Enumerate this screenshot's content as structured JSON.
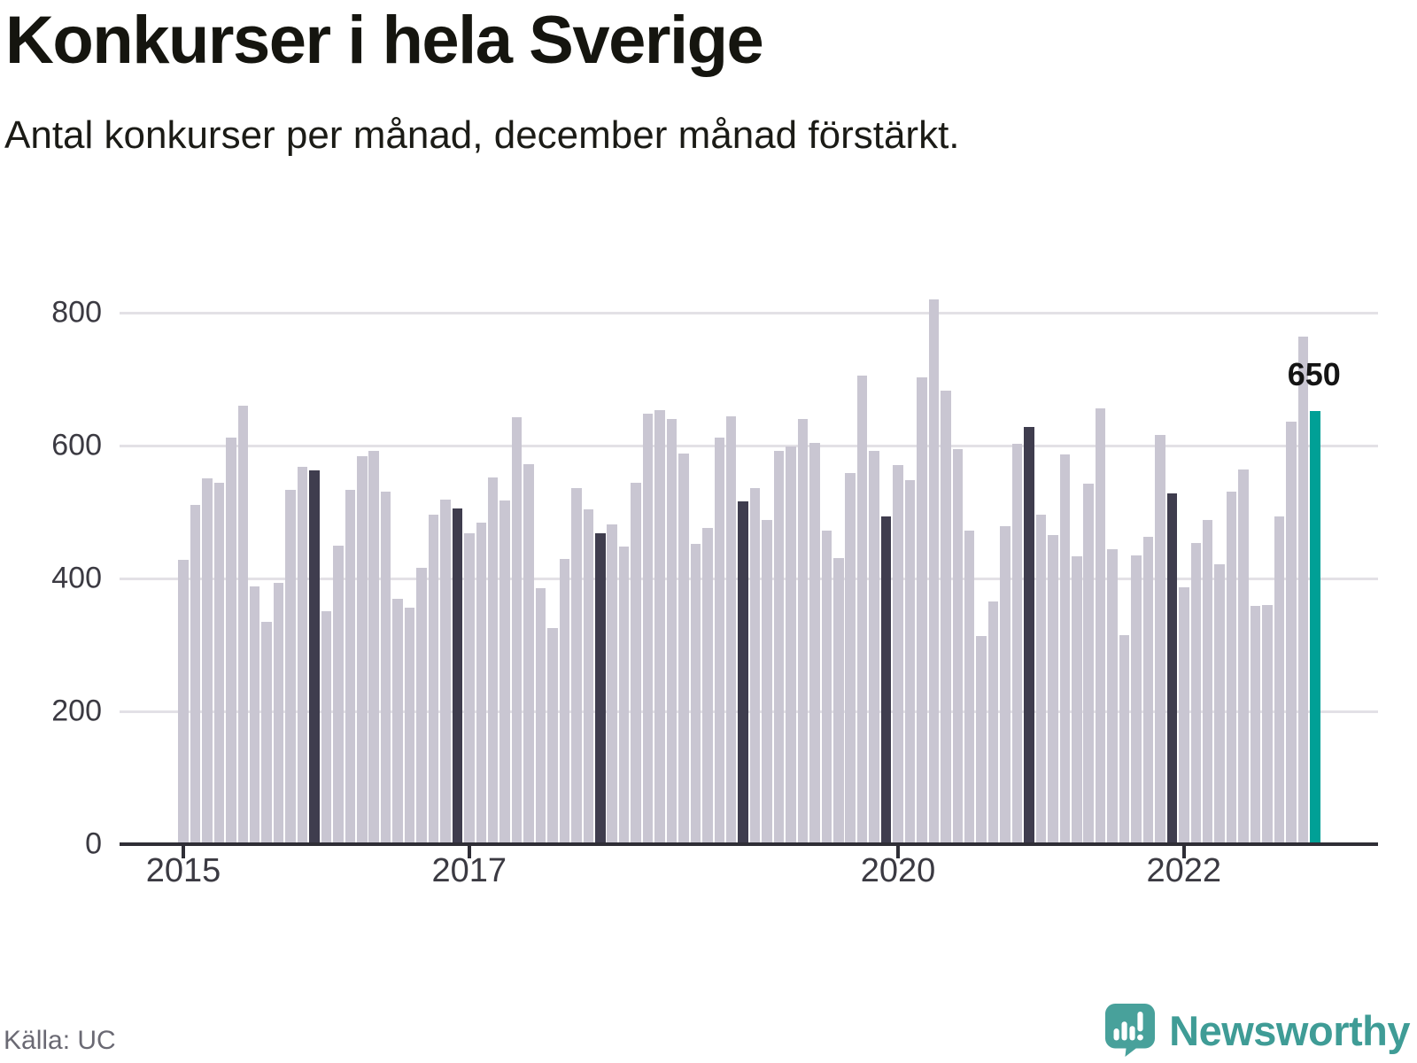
{
  "header": {
    "title": "Konkurser i hela Sverige",
    "subtitle": "Antal konkurser per månad, december månad förstärkt."
  },
  "footer": {
    "source": "Källa: UC",
    "logo_text": "Newsworthy"
  },
  "colors": {
    "bar_regular": "#c9c6d2",
    "bar_december": "#3f3d4e",
    "bar_highlight": "#00a096",
    "gridline": "#e3e1e6",
    "axis": "#2f2e36",
    "logo_teal": "#48a19b"
  },
  "chart_data": {
    "type": "bar",
    "title": "Konkurser i hela Sverige",
    "subtitle": "Antal konkurser per månad, december månad förstärkt.",
    "x_start": "2015-01",
    "x_frequency": "monthly",
    "xlabel": "",
    "ylabel": "",
    "ylim": [
      0,
      850
    ],
    "grid": "horizontal",
    "yticks": [
      0,
      200,
      400,
      600,
      800
    ],
    "xticks": [
      {
        "label": "2015",
        "month_index": 0
      },
      {
        "label": "2017",
        "month_index": 24
      },
      {
        "label": "2020",
        "month_index": 60
      },
      {
        "label": "2022",
        "month_index": 84
      }
    ],
    "december_emphasized": true,
    "highlight": {
      "month": "2022-12",
      "value": 650,
      "label": "650"
    },
    "series": [
      {
        "name": "Antal konkurser per månad",
        "values": [
          426,
          508,
          548,
          542,
          610,
          657,
          386,
          332,
          391,
          531,
          565,
          560,
          348,
          447,
          531,
          581,
          590,
          528,
          367,
          353,
          414,
          493,
          516,
          503,
          466,
          482,
          550,
          515,
          640,
          570,
          383,
          323,
          427,
          533,
          502,
          465,
          479,
          446,
          541,
          646,
          651,
          638,
          585,
          449,
          473,
          609,
          641,
          513,
          533,
          485,
          590,
          596,
          637,
          602,
          469,
          428,
          556,
          703,
          589,
          491,
          568,
          545,
          700,
          817,
          680,
          592,
          469,
          311,
          363,
          476,
          600,
          625,
          494,
          463,
          584,
          431,
          540,
          653,
          441,
          312,
          432,
          460,
          614,
          525,
          384,
          451,
          485,
          419,
          528,
          562,
          356,
          357,
          491,
          633,
          762,
          650
        ]
      }
    ]
  }
}
